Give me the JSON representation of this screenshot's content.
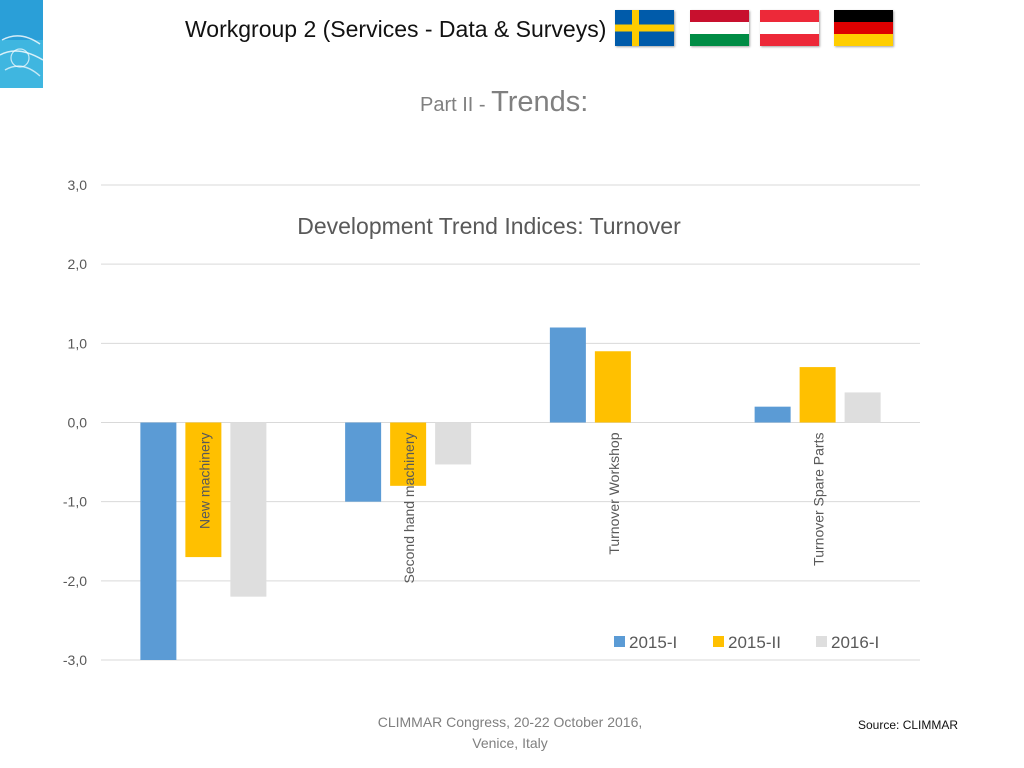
{
  "header": {
    "title": "Workgroup 2 (Services - Data & Surveys)",
    "subtitle_small": "Part II - ",
    "subtitle_big": "Trends:"
  },
  "flags": [
    {
      "name": "sweden",
      "colors": [
        "#005BAA",
        "#FECC00"
      ]
    },
    {
      "name": "hungary",
      "colors": [
        "#C8102E",
        "#FFFFFF",
        "#008C45"
      ]
    },
    {
      "name": "austria",
      "colors": [
        "#ED2939",
        "#FFFFFF",
        "#ED2939"
      ]
    },
    {
      "name": "germany",
      "colors": [
        "#000000",
        "#DD0000",
        "#FFCE00"
      ]
    }
  ],
  "chart_data": {
    "type": "bar",
    "title": "Development Trend Indices: Turnover",
    "categories": [
      "New machinery",
      "Second hand machinery",
      "Turnover Workshop",
      "Turnover Spare Parts"
    ],
    "series": [
      {
        "name": "2015-I",
        "color": "#5B9BD5",
        "values": [
          -3.0,
          -1.0,
          1.2,
          0.2
        ]
      },
      {
        "name": "2015-II",
        "color": "#FFC000",
        "values": [
          -1.7,
          -0.8,
          0.9,
          0.7
        ]
      },
      {
        "name": "2016-I",
        "color": "#DEDEDE",
        "values": [
          -2.2,
          -0.53,
          0,
          0.38
        ]
      }
    ],
    "ylim": [
      -3,
      3
    ],
    "yticks": [
      "3,0",
      "2,0",
      "1,0",
      "0,0",
      "-1,0",
      "-2,0",
      "-3,0"
    ],
    "grid": true,
    "legend_position": "bottom-right"
  },
  "footer": {
    "line1": "CLIMMAR Congress, 20-22 October 2016,",
    "line2": "Venice, Italy",
    "source": "Source: CLIMMAR"
  }
}
